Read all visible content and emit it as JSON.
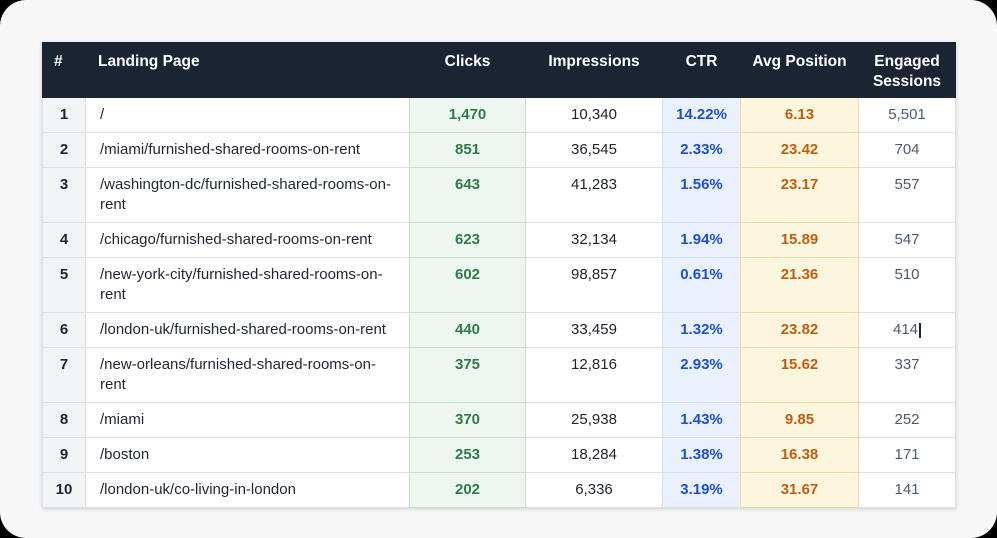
{
  "table": {
    "columns": [
      {
        "key": "rank",
        "label": "#"
      },
      {
        "key": "landing_page",
        "label": "Landing Page"
      },
      {
        "key": "clicks",
        "label": "Clicks"
      },
      {
        "key": "impressions",
        "label": "Impressions"
      },
      {
        "key": "ctr",
        "label": "CTR"
      },
      {
        "key": "avg_position",
        "label": "Avg Position"
      },
      {
        "key": "engaged_sessions",
        "label": "Engaged Sessions"
      }
    ],
    "rows": [
      {
        "rank": "1",
        "landing_page": "/",
        "clicks": "1,470",
        "impressions": "10,340",
        "ctr": "14.22%",
        "avg_position": "6.13",
        "engaged_sessions": "5,501"
      },
      {
        "rank": "2",
        "landing_page": "/miami/furnished-shared-rooms-on-rent",
        "clicks": "851",
        "impressions": "36,545",
        "ctr": "2.33%",
        "avg_position": "23.42",
        "engaged_sessions": "704"
      },
      {
        "rank": "3",
        "landing_page": "/washington-dc/furnished-shared-rooms-on-rent",
        "clicks": "643",
        "impressions": "41,283",
        "ctr": "1.56%",
        "avg_position": "23.17",
        "engaged_sessions": "557"
      },
      {
        "rank": "4",
        "landing_page": "/chicago/furnished-shared-rooms-on-rent",
        "clicks": "623",
        "impressions": "32,134",
        "ctr": "1.94%",
        "avg_position": "15.89",
        "engaged_sessions": "547"
      },
      {
        "rank": "5",
        "landing_page": "/new-york-city/furnished-shared-rooms-on-rent",
        "clicks": "602",
        "impressions": "98,857",
        "ctr": "0.61%",
        "avg_position": "21.36",
        "engaged_sessions": "510"
      },
      {
        "rank": "6",
        "landing_page": "/london-uk/furnished-shared-rooms-on-rent",
        "clicks": "440",
        "impressions": "33,459",
        "ctr": "1.32%",
        "avg_position": "23.82",
        "engaged_sessions": "414",
        "text_cursor": true
      },
      {
        "rank": "7",
        "landing_page": "/new-orleans/furnished-shared-rooms-on-rent",
        "clicks": "375",
        "impressions": "12,816",
        "ctr": "2.93%",
        "avg_position": "15.62",
        "engaged_sessions": "337"
      },
      {
        "rank": "8",
        "landing_page": "/miami",
        "clicks": "370",
        "impressions": "25,938",
        "ctr": "1.43%",
        "avg_position": "9.85",
        "engaged_sessions": "252"
      },
      {
        "rank": "9",
        "landing_page": "/boston",
        "clicks": "253",
        "impressions": "18,284",
        "ctr": "1.38%",
        "avg_position": "16.38",
        "engaged_sessions": "171"
      },
      {
        "rank": "10",
        "landing_page": "/london-uk/co-living-in-london",
        "clicks": "202",
        "impressions": "6,336",
        "ctr": "3.19%",
        "avg_position": "31.67",
        "engaged_sessions": "141"
      }
    ]
  },
  "colors": {
    "header_bg": "#1a2433",
    "header_text": "#ffffff",
    "card_bg": "#f7f7f8",
    "clicks_bg": "#edf7f0",
    "clicks_text": "#2e7b4b",
    "ctr_bg": "#eaf0fc",
    "ctr_text": "#1d50d8",
    "avg_position_bg": "#fdf6df",
    "avg_position_text": "#c05e10",
    "engaged_sessions_text": "#4d5a6c",
    "rank_column_bg": "#f3f4f6"
  }
}
